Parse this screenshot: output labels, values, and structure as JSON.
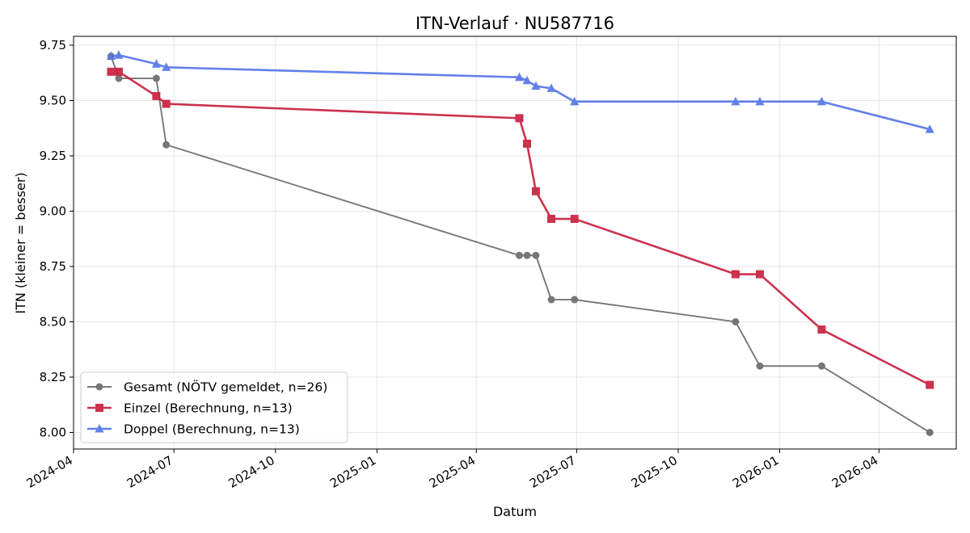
{
  "chart_data": {
    "type": "line",
    "title": "ITN-Verlauf · NU587716",
    "xlabel": "Datum",
    "ylabel": "ITN  (kleiner = besser)",
    "x_axis_type": "date",
    "xlim": [
      "2024-04-01",
      "2026-06-10"
    ],
    "ylim": [
      7.925,
      9.79
    ],
    "x_ticks": [
      "2024-04-01",
      "2024-07-01",
      "2024-10-01",
      "2025-01-01",
      "2025-04-01",
      "2025-07-01",
      "2025-10-01",
      "2026-01-01",
      "2026-04-01"
    ],
    "x_tick_labels": [
      "2024-04",
      "2024-07",
      "2024-10",
      "2025-01",
      "2025-04",
      "2025-07",
      "2025-10",
      "2026-01",
      "2026-04"
    ],
    "y_ticks": [
      8.0,
      8.25,
      8.5,
      8.75,
      9.0,
      9.25,
      9.5,
      9.75
    ],
    "y_tick_labels": [
      "8.00",
      "8.25",
      "8.50",
      "8.75",
      "9.00",
      "9.25",
      "9.50",
      "9.75"
    ],
    "grid": true,
    "legend_position": "lower-left",
    "series": [
      {
        "name": "Gesamt (NÖTV gemeldet, n=26)",
        "color": "#444444",
        "marker": "circle",
        "points": [
          {
            "x": "2024-05-05",
            "y": 9.7
          },
          {
            "x": "2024-05-12",
            "y": 9.6
          },
          {
            "x": "2024-06-15",
            "y": 9.6
          },
          {
            "x": "2024-06-24",
            "y": 9.3
          },
          {
            "x": "2025-05-10",
            "y": 8.8
          },
          {
            "x": "2025-05-17",
            "y": 8.8
          },
          {
            "x": "2025-05-25",
            "y": 8.8
          },
          {
            "x": "2025-06-08",
            "y": 8.6
          },
          {
            "x": "2025-06-29",
            "y": 8.6
          },
          {
            "x": "2025-11-22",
            "y": 8.5
          },
          {
            "x": "2025-12-14",
            "y": 8.3
          },
          {
            "x": "2026-02-08",
            "y": 8.3
          },
          {
            "x": "2026-05-17",
            "y": 8.0
          }
        ]
      },
      {
        "name": "Einzel (Berechnung, n=13)",
        "color": "#c8203f",
        "marker": "square",
        "points": [
          {
            "x": "2024-05-05",
            "y": 9.63
          },
          {
            "x": "2024-05-12",
            "y": 9.63
          },
          {
            "x": "2024-06-15",
            "y": 9.52
          },
          {
            "x": "2024-06-24",
            "y": 9.485
          },
          {
            "x": "2025-05-10",
            "y": 9.42
          },
          {
            "x": "2025-05-17",
            "y": 9.305
          },
          {
            "x": "2025-05-25",
            "y": 9.09
          },
          {
            "x": "2025-06-08",
            "y": 8.965
          },
          {
            "x": "2025-06-29",
            "y": 8.965
          },
          {
            "x": "2025-11-22",
            "y": 8.715
          },
          {
            "x": "2025-12-14",
            "y": 8.715
          },
          {
            "x": "2026-02-08",
            "y": 8.465
          },
          {
            "x": "2026-05-17",
            "y": 8.215
          }
        ]
      },
      {
        "name": "Doppel (Berechnung, n=13)",
        "color": "#5576e8",
        "marker": "triangle",
        "points": [
          {
            "x": "2024-05-05",
            "y": 9.7
          },
          {
            "x": "2024-05-12",
            "y": 9.705
          },
          {
            "x": "2024-06-15",
            "y": 9.665
          },
          {
            "x": "2024-06-24",
            "y": 9.65
          },
          {
            "x": "2025-05-10",
            "y": 9.605
          },
          {
            "x": "2025-05-17",
            "y": 9.59
          },
          {
            "x": "2025-05-25",
            "y": 9.565
          },
          {
            "x": "2025-06-08",
            "y": 9.555
          },
          {
            "x": "2025-06-29",
            "y": 9.495
          },
          {
            "x": "2025-11-22",
            "y": 9.495
          },
          {
            "x": "2025-12-14",
            "y": 9.495
          },
          {
            "x": "2026-02-08",
            "y": 9.495
          },
          {
            "x": "2026-05-17",
            "y": 9.37
          }
        ]
      }
    ]
  }
}
